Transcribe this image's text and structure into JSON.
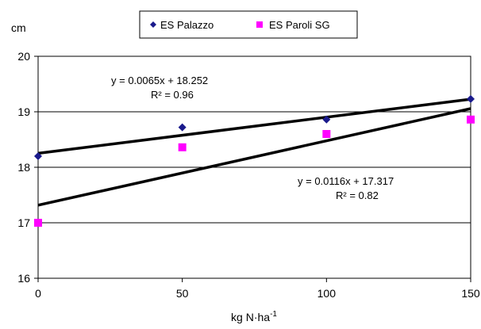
{
  "chart_data": {
    "type": "scatter",
    "title": "",
    "xlabel": "kg N·ha-1",
    "xlabel_base": "kg N·ha",
    "xlabel_sup": "-1",
    "ylabel": "cm",
    "xlim": [
      0,
      150
    ],
    "ylim": [
      16,
      20
    ],
    "x_ticks": [
      "0",
      "50",
      "100",
      "150"
    ],
    "y_ticks": [
      "16",
      "17",
      "18",
      "19",
      "20"
    ],
    "grid": "horizontal",
    "legend_position": "top",
    "series": [
      {
        "name": "ES Palazzo",
        "marker": "diamond",
        "color": "#1a1a8c",
        "x": [
          0,
          50,
          100,
          150
        ],
        "y": [
          18.2,
          18.72,
          18.86,
          19.23
        ],
        "trendline": {
          "slope": 0.0065,
          "intercept": 18.252,
          "equation": "y = 0.0065x + 18.252",
          "r2": "R² = 0.96"
        }
      },
      {
        "name": "ES Paroli SG",
        "marker": "square",
        "color": "#ff00ff",
        "x": [
          0,
          50,
          100,
          150
        ],
        "y": [
          17.0,
          18.36,
          18.6,
          18.86
        ],
        "trendline": {
          "slope": 0.0116,
          "intercept": 17.317,
          "equation": "y = 0.0116x + 17.317",
          "r2": "R² = 0.82"
        }
      }
    ]
  }
}
